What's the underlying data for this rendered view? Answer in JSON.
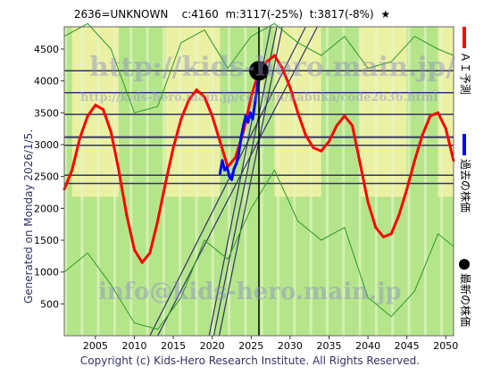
{
  "header": {
    "code_name": "2636=UNKNOWN",
    "current": "c:4160",
    "mean": "m:3117(-25%)",
    "target": "t:3817(-8%)",
    "star": "★"
  },
  "side_text": "Generated on Monday 2026/1/5.",
  "footer": "Copyright (c) Kids-Hero Research Institute. All Rights Reserved.",
  "watermarks": {
    "top": "http://kids-hero.main.jp/",
    "mid": "http://kids-hero.main.jp/cgi-bin/kabuka/code2636.html",
    "bottom": "info@kids-hero.main.jp"
  },
  "legend": [
    {
      "label": "ＡＩ予測",
      "color": "#ff0000",
      "kind": "line"
    },
    {
      "label": "過去の株価",
      "color": "#0000ff",
      "kind": "line"
    },
    {
      "label": "最新の株価",
      "color": "#000000",
      "kind": "dot"
    }
  ],
  "colors": {
    "forecast": "#ff0000",
    "history": "#0000ff",
    "band_green": "#b5e58a",
    "band_yellow": "#f4f3a6",
    "grid_line": "#333366",
    "thin_green": "#2b9a2b"
  },
  "chart_data": {
    "type": "line",
    "xlim": [
      2001,
      2051
    ],
    "ylim": [
      0,
      4850
    ],
    "x_ticks": [
      2005,
      2010,
      2015,
      2020,
      2025,
      2030,
      2035,
      2040,
      2045,
      2050
    ],
    "y_ticks": [
      500,
      1000,
      1500,
      2000,
      2500,
      3000,
      3500,
      4000,
      4500
    ],
    "horizontal_levels": [
      4160,
      3817,
      3475,
      3117,
      2990,
      2520,
      2390
    ],
    "current_marker": {
      "x": 2026.0,
      "y": 4160
    },
    "current_vline_x": 2026.0,
    "series": [
      {
        "role": "forecast",
        "x": [
          2001,
          2002,
          2003,
          2004,
          2005,
          2006,
          2007,
          2008,
          2009,
          2010,
          2011,
          2012,
          2013,
          2014,
          2015,
          2016,
          2017,
          2018,
          2019,
          2020,
          2021,
          2022,
          2023,
          2024,
          2025,
          2026,
          2027,
          2028,
          2029,
          2030,
          2031,
          2032,
          2033,
          2034,
          2035,
          2036,
          2037,
          2038,
          2039,
          2040,
          2041,
          2042,
          2043,
          2044,
          2045,
          2046,
          2047,
          2048,
          2049,
          2050,
          2051
        ],
        "values": [
          2300,
          2600,
          3100,
          3450,
          3620,
          3550,
          3200,
          2600,
          1900,
          1350,
          1150,
          1300,
          1800,
          2400,
          2950,
          3400,
          3700,
          3860,
          3750,
          3450,
          3050,
          2650,
          2800,
          3200,
          3750,
          4150,
          4300,
          4400,
          4200,
          3900,
          3500,
          3150,
          2950,
          2900,
          3050,
          3300,
          3450,
          3300,
          2700,
          2100,
          1700,
          1550,
          1600,
          1900,
          2300,
          2750,
          3150,
          3450,
          3500,
          3250,
          2750
        ]
      },
      {
        "role": "history",
        "x": [
          2021.0,
          2021.3,
          2021.6,
          2021.9,
          2022.2,
          2022.5,
          2022.8,
          2023.1,
          2023.4,
          2023.7,
          2024.0,
          2024.3,
          2024.6,
          2024.9,
          2025.2,
          2025.5,
          2025.8,
          2026.0
        ],
        "values": [
          2550,
          2750,
          2600,
          2650,
          2500,
          2450,
          2620,
          2700,
          2850,
          3100,
          3300,
          3450,
          3350,
          3500,
          3400,
          3650,
          3900,
          4160
        ]
      },
      {
        "role": "upper_envelope",
        "x": [
          2001,
          2004,
          2007,
          2010,
          2013,
          2016,
          2019,
          2022,
          2025,
          2028,
          2031,
          2034,
          2037,
          2040,
          2043,
          2046,
          2049,
          2051
        ],
        "values": [
          4700,
          4900,
          4500,
          3500,
          3600,
          4600,
          4800,
          4200,
          4700,
          4900,
          4600,
          4400,
          4700,
          4200,
          4300,
          4700,
          4500,
          4400
        ]
      },
      {
        "role": "lower_envelope",
        "x": [
          2001,
          2004,
          2007,
          2010,
          2013,
          2016,
          2019,
          2022,
          2025,
          2028,
          2031,
          2034,
          2037,
          2040,
          2043,
          2046,
          2049,
          2051
        ],
        "values": [
          1000,
          1300,
          800,
          200,
          100,
          600,
          1500,
          1200,
          2000,
          2600,
          1800,
          1500,
          1700,
          600,
          300,
          700,
          1600,
          1400
        ]
      }
    ]
  }
}
